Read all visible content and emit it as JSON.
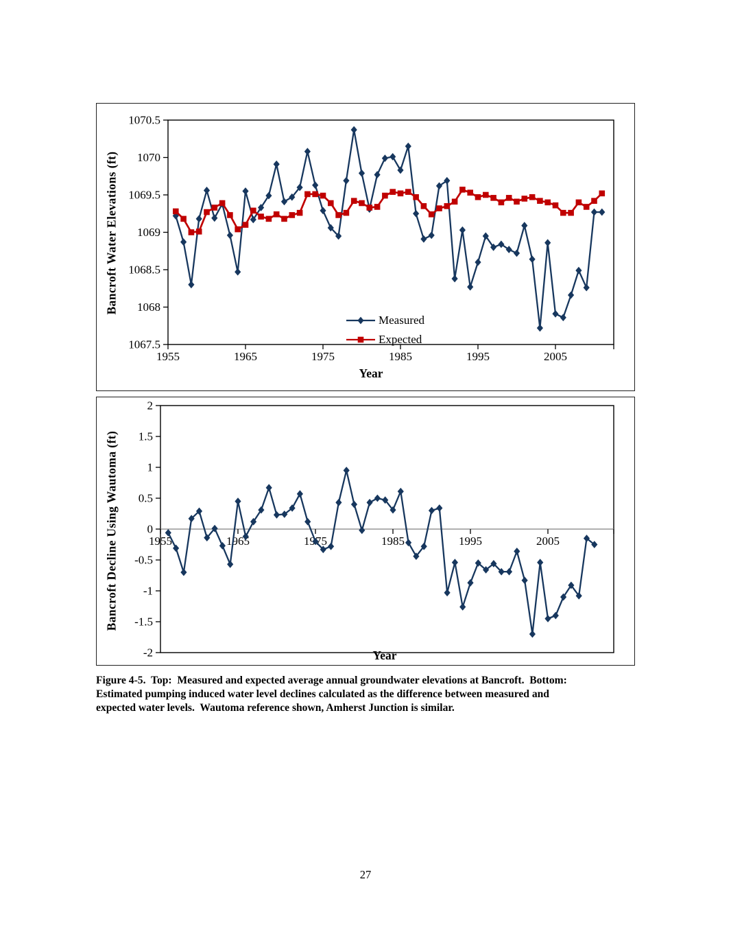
{
  "page": {
    "number": "27"
  },
  "caption": {
    "line1": "Figure 4-5.  Top:  Measured and expected average annual groundwater elevations at Bancroft.  Bottom:",
    "line2": "Estimated pumping induced water level declines calculated as the difference between measured and",
    "line3": "expected water levels.  Wautoma reference shown, Amherst Junction is similar."
  },
  "colors": {
    "measured": "#17375E",
    "expected": "#C00000",
    "axis": "#000000",
    "zero_line": "#808080"
  },
  "chart_data": [
    {
      "type": "line",
      "title": "",
      "ylabel": "Bancroft Water Elevations (ft)",
      "xlabel": "Year",
      "ylim": [
        1067.5,
        1070.5
      ],
      "ytick_values": [
        1070.5,
        1070,
        1069.5,
        1069,
        1068.5,
        1068,
        1067.5
      ],
      "ytick_labels": [
        "1070.5",
        "1070",
        "1069.5",
        "1069",
        "1068.5",
        "1068",
        "1067.5"
      ],
      "xtick_values": [
        1955,
        1965,
        1975,
        1985,
        1995,
        2005
      ],
      "xtick_labels": [
        "1955",
        "1965",
        "1975",
        "1985",
        "1995",
        "2005"
      ],
      "x_range": [
        1955,
        2013
      ],
      "grid": "none",
      "legend": [
        "Measured",
        "Expected"
      ],
      "legend_position": "inside-bottom-center",
      "x": [
        1956,
        1957,
        1958,
        1959,
        1960,
        1961,
        1962,
        1963,
        1964,
        1965,
        1966,
        1967,
        1968,
        1969,
        1970,
        1971,
        1972,
        1973,
        1974,
        1975,
        1976,
        1977,
        1978,
        1979,
        1980,
        1981,
        1982,
        1983,
        1984,
        1985,
        1986,
        1987,
        1988,
        1989,
        1990,
        1991,
        1992,
        1993,
        1994,
        1995,
        1996,
        1997,
        1998,
        1999,
        2000,
        2001,
        2002,
        2003,
        2004,
        2005,
        2006,
        2007,
        2008,
        2009,
        2010,
        2011
      ],
      "series": [
        {
          "name": "Measured",
          "color": "#17375E",
          "marker": "diamond",
          "line_width": 2.3,
          "values": [
            1069.22,
            1068.87,
            1068.3,
            1069.18,
            1069.56,
            1069.19,
            1069.38,
            1068.96,
            1068.47,
            1069.55,
            1069.17,
            1069.33,
            1069.49,
            1069.91,
            1069.41,
            1069.47,
            1069.6,
            1070.08,
            1069.63,
            1069.29,
            1069.06,
            1068.95,
            1069.69,
            1070.37,
            1069.79,
            1069.31,
            1069.77,
            1069.99,
            1070.01,
            1069.83,
            1070.15,
            1069.25,
            1068.91,
            1068.96,
            1069.62,
            1069.69,
            1068.38,
            1069.03,
            1068.27,
            1068.6,
            1068.95,
            1068.8,
            1068.84,
            1068.77,
            1068.72,
            1069.09,
            1068.64,
            1067.72,
            1068.86,
            1067.91,
            1067.86,
            1068.16,
            1068.49,
            1068.26,
            1069.27,
            1069.27
          ]
        },
        {
          "name": "Expected",
          "color": "#C00000",
          "marker": "square",
          "line_width": 2.7,
          "values": [
            1069.28,
            1069.18,
            1069.0,
            1069.01,
            1069.27,
            1069.33,
            1069.39,
            1069.23,
            1069.04,
            1069.1,
            1069.29,
            1069.21,
            1069.18,
            1069.24,
            1069.18,
            1069.23,
            1069.26,
            1069.51,
            1069.51,
            1069.49,
            1069.39,
            1069.23,
            1069.26,
            1069.42,
            1069.39,
            1069.33,
            1069.34,
            1069.49,
            1069.54,
            1069.52,
            1069.54,
            1069.47,
            1069.35,
            1069.24,
            1069.32,
            1069.35,
            1069.41,
            1069.57,
            1069.53,
            1069.47,
            1069.5,
            1069.46,
            1069.4,
            1069.46,
            1069.41,
            1069.45,
            1069.47,
            1069.42,
            1069.4,
            1069.36,
            1069.26,
            1069.26,
            1069.4,
            1069.34,
            1069.42,
            1069.52
          ]
        }
      ]
    },
    {
      "type": "line",
      "title": "",
      "ylabel": "Bancroft Decline Using Wautoma (ft)",
      "xlabel": "Year",
      "ylim": [
        -2,
        2
      ],
      "ytick_values": [
        2,
        1.5,
        1,
        0.5,
        0,
        -0.5,
        -1,
        -1.5,
        -2
      ],
      "ytick_labels": [
        "2",
        "1.5",
        "1",
        "0.5",
        "0",
        "-0.5",
        "-1",
        "-1.5",
        "-2"
      ],
      "xtick_values": [
        1955,
        1965,
        1975,
        1985,
        1995,
        2005
      ],
      "xtick_labels": [
        "1955",
        "1965",
        "1975",
        "1985",
        "1995",
        "2005"
      ],
      "x_range": [
        1955,
        2013
      ],
      "grid": "zero-line-only",
      "legend": [],
      "legend_position": "none",
      "x": [
        1956,
        1957,
        1958,
        1959,
        1960,
        1961,
        1962,
        1963,
        1964,
        1965,
        1966,
        1967,
        1968,
        1969,
        1970,
        1971,
        1972,
        1973,
        1974,
        1975,
        1976,
        1977,
        1978,
        1979,
        1980,
        1981,
        1982,
        1983,
        1984,
        1985,
        1986,
        1987,
        1988,
        1989,
        1990,
        1991,
        1992,
        1993,
        1994,
        1995,
        1996,
        1997,
        1998,
        1999,
        2000,
        2001,
        2002,
        2003,
        2004,
        2005,
        2006,
        2007,
        2008,
        2009,
        2010,
        2011
      ],
      "series": [
        {
          "name": "Decline",
          "color": "#17375E",
          "marker": "diamond",
          "line_width": 2.3,
          "values": [
            -0.06,
            -0.31,
            -0.7,
            0.17,
            0.29,
            -0.14,
            0.01,
            -0.27,
            -0.57,
            0.45,
            -0.12,
            0.12,
            0.31,
            0.67,
            0.23,
            0.24,
            0.34,
            0.57,
            0.12,
            -0.2,
            -0.33,
            -0.28,
            0.43,
            0.95,
            0.4,
            -0.02,
            0.43,
            0.5,
            0.47,
            0.31,
            0.61,
            -0.22,
            -0.44,
            -0.28,
            0.3,
            0.34,
            -1.03,
            -0.54,
            -1.26,
            -0.87,
            -0.55,
            -0.66,
            -0.56,
            -0.69,
            -0.69,
            -0.36,
            -0.83,
            -1.7,
            -0.54,
            -1.45,
            -1.4,
            -1.1,
            -0.91,
            -1.08,
            -0.15,
            -0.25
          ]
        }
      ]
    }
  ]
}
